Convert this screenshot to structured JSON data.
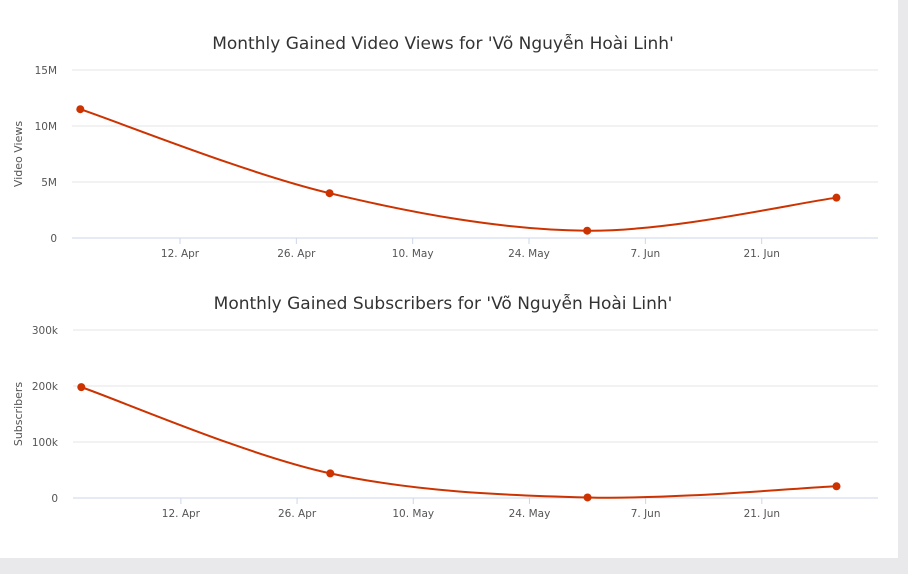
{
  "chart_data": [
    {
      "type": "line",
      "title": "Monthly Gained Video Views for 'Võ Nguyễn Hoài Linh'",
      "ylabel": "Video Views",
      "xlabel": "",
      "ylim": [
        0,
        15000000
      ],
      "y_ticks": [
        {
          "value": 0,
          "label": "0"
        },
        {
          "value": 5000000,
          "label": "5M"
        },
        {
          "value": 10000000,
          "label": "10M"
        },
        {
          "value": 15000000,
          "label": "15M"
        }
      ],
      "xlim": [
        "2020-03-30",
        "2020-07-05"
      ],
      "x_ticks": [
        {
          "date": "2020-04-12",
          "label": "12. Apr"
        },
        {
          "date": "2020-04-26",
          "label": "26. Apr"
        },
        {
          "date": "2020-05-10",
          "label": "10. May"
        },
        {
          "date": "2020-05-24",
          "label": "24. May"
        },
        {
          "date": "2020-06-07",
          "label": "7. Jun"
        },
        {
          "date": "2020-06-21",
          "label": "21. Jun"
        }
      ],
      "grid": true,
      "series": [
        {
          "color": "#cc3300",
          "points": [
            {
              "date": "2020-03-31",
              "value": 11500000
            },
            {
              "date": "2020-04-30",
              "value": 4000000
            },
            {
              "date": "2020-05-31",
              "value": 650000
            },
            {
              "date": "2020-06-30",
              "value": 3600000
            }
          ]
        }
      ]
    },
    {
      "type": "line",
      "title": "Monthly Gained Subscribers for 'Võ Nguyễn Hoài Linh'",
      "ylabel": "Subscribers",
      "xlabel": "",
      "ylim": [
        0,
        300000
      ],
      "y_ticks": [
        {
          "value": 0,
          "label": "0"
        },
        {
          "value": 100000,
          "label": "100k"
        },
        {
          "value": 200000,
          "label": "200k"
        },
        {
          "value": 300000,
          "label": "300k"
        }
      ],
      "xlim": [
        "2020-03-30",
        "2020-07-05"
      ],
      "x_ticks": [
        {
          "date": "2020-04-12",
          "label": "12. Apr"
        },
        {
          "date": "2020-04-26",
          "label": "26. Apr"
        },
        {
          "date": "2020-05-10",
          "label": "10. May"
        },
        {
          "date": "2020-05-24",
          "label": "24. May"
        },
        {
          "date": "2020-06-07",
          "label": "7. Jun"
        },
        {
          "date": "2020-06-21",
          "label": "21. Jun"
        }
      ],
      "grid": true,
      "series": [
        {
          "color": "#cc3300",
          "points": [
            {
              "date": "2020-03-31",
              "value": 198000
            },
            {
              "date": "2020-04-30",
              "value": 44000
            },
            {
              "date": "2020-05-31",
              "value": 1000
            },
            {
              "date": "2020-06-30",
              "value": 21000
            }
          ]
        }
      ]
    }
  ]
}
